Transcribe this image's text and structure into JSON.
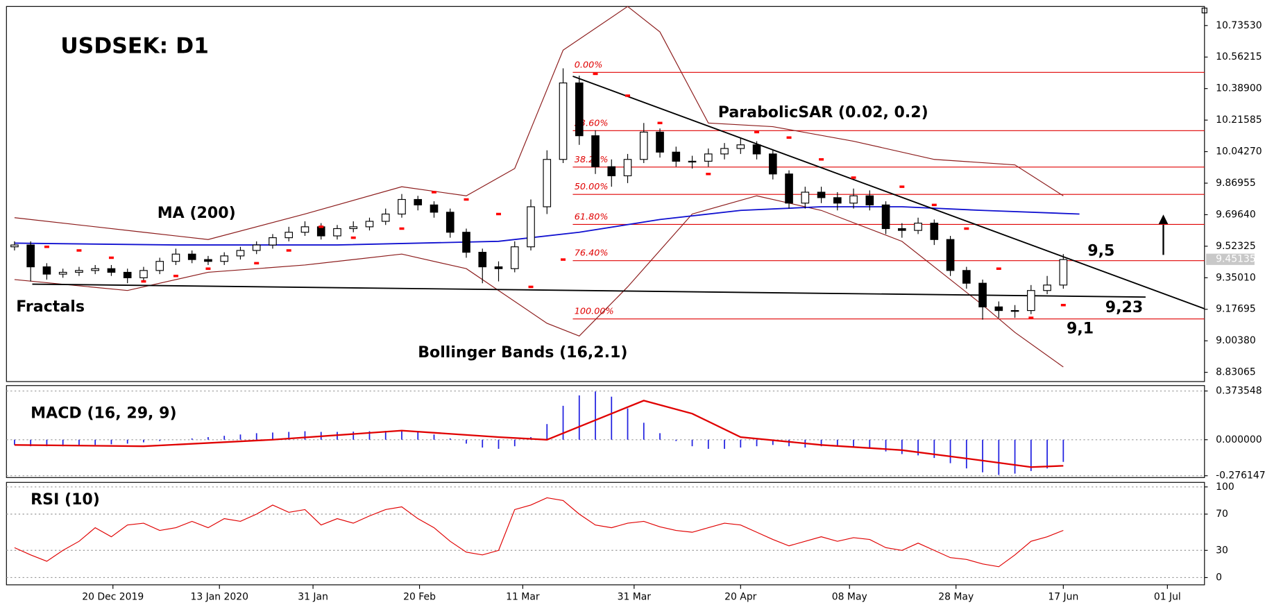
{
  "chart_data": {
    "type": "candlestick",
    "title": "USDSEK: D1",
    "xlim": [
      -0.5,
      73.75
    ],
    "xticks": [
      {
        "value": 6.1,
        "label": "20 Dec 2019"
      },
      {
        "value": 12.7,
        "label": "13 Jan 2020"
      },
      {
        "value": 18.5,
        "label": "31 Jan"
      },
      {
        "value": 25.1,
        "label": "20 Feb"
      },
      {
        "value": 31.5,
        "label": "11 Mar"
      },
      {
        "value": 38.4,
        "label": "31 Mar"
      },
      {
        "value": 45,
        "label": "20 Apr"
      },
      {
        "value": 51.75,
        "label": "08 May"
      },
      {
        "value": 58.35,
        "label": "28 May"
      },
      {
        "value": 65,
        "label": "17 Jun"
      },
      {
        "value": 71.45,
        "label": "01 Jul"
      }
    ],
    "price": {
      "ylim": [
        8.78,
        10.84
      ],
      "yticks": [
        {
          "value": 10.7353,
          "label": "10.73530"
        },
        {
          "value": 10.56215,
          "label": "10.56215"
        },
        {
          "value": 10.389,
          "label": "10.38900"
        },
        {
          "value": 10.21585,
          "label": "10.21585"
        },
        {
          "value": 10.0427,
          "label": "10.04270"
        },
        {
          "value": 9.86955,
          "label": "9.86955"
        },
        {
          "value": 9.6964,
          "label": "9.69640"
        },
        {
          "value": 9.52325,
          "label": "9.52325"
        },
        {
          "value": 9.3501,
          "label": "9.35010"
        },
        {
          "value": 9.17695,
          "label": "9.17695"
        },
        {
          "value": 9.0038,
          "label": "9.00380"
        },
        {
          "value": 8.83065,
          "label": "8.83065"
        }
      ],
      "last_price": {
        "value": 9.45135,
        "label": "9.45135"
      },
      "open": [
        9.52,
        9.53,
        9.41,
        9.37,
        9.38,
        9.39,
        9.4,
        9.38,
        9.35,
        9.39,
        9.44,
        9.48,
        9.45,
        9.44,
        9.47,
        9.5,
        9.53,
        9.57,
        9.6,
        9.63,
        9.58,
        9.62,
        9.63,
        9.66,
        9.7,
        9.78,
        9.75,
        9.71,
        9.6,
        9.49,
        9.41,
        9.4,
        9.52,
        9.74,
        10.0,
        10.42,
        10.13,
        9.96,
        9.91,
        10.0,
        10.15,
        10.04,
        9.99,
        9.99,
        10.03,
        10.06,
        10.08,
        10.03,
        9.92,
        9.76,
        9.82,
        9.79,
        9.76,
        9.8,
        9.75,
        9.62,
        9.61,
        9.65,
        9.56,
        9.39,
        9.32,
        9.19,
        9.17,
        9.17,
        9.28,
        9.31
      ],
      "high": [
        9.55,
        9.55,
        9.43,
        9.4,
        9.41,
        9.42,
        9.42,
        9.4,
        9.41,
        9.46,
        9.51,
        9.5,
        9.47,
        9.49,
        9.52,
        9.55,
        9.59,
        9.63,
        9.66,
        9.65,
        9.64,
        9.66,
        9.68,
        9.73,
        9.81,
        9.8,
        9.77,
        9.73,
        9.62,
        9.51,
        9.44,
        9.55,
        9.78,
        10.05,
        10.5,
        10.46,
        10.16,
        10.0,
        10.03,
        10.2,
        10.17,
        10.07,
        10.02,
        10.06,
        10.09,
        10.12,
        10.1,
        10.05,
        9.94,
        9.85,
        9.85,
        9.82,
        9.84,
        9.83,
        9.77,
        9.65,
        9.68,
        9.67,
        9.58,
        9.41,
        9.34,
        9.22,
        9.2,
        9.31,
        9.36,
        9.48
      ],
      "low": [
        9.5,
        9.33,
        9.34,
        9.35,
        9.36,
        9.37,
        9.36,
        9.32,
        9.33,
        9.37,
        9.42,
        9.43,
        9.42,
        9.42,
        9.45,
        9.48,
        9.51,
        9.55,
        9.58,
        9.56,
        9.56,
        9.6,
        9.61,
        9.64,
        9.68,
        9.72,
        9.68,
        9.57,
        9.46,
        9.32,
        9.33,
        9.38,
        9.5,
        9.7,
        9.98,
        10.08,
        9.92,
        9.85,
        9.87,
        9.98,
        10.01,
        9.96,
        9.95,
        9.96,
        10.0,
        10.03,
        10.0,
        9.89,
        9.73,
        9.73,
        9.76,
        9.72,
        9.73,
        9.72,
        9.59,
        9.57,
        9.59,
        9.53,
        9.36,
        9.29,
        9.12,
        9.13,
        9.13,
        9.15,
        9.26,
        9.29
      ],
      "close": [
        9.53,
        9.41,
        9.37,
        9.38,
        9.39,
        9.4,
        9.38,
        9.35,
        9.39,
        9.44,
        9.48,
        9.45,
        9.44,
        9.47,
        9.5,
        9.53,
        9.57,
        9.6,
        9.63,
        9.58,
        9.62,
        9.63,
        9.66,
        9.7,
        9.78,
        9.75,
        9.71,
        9.6,
        9.49,
        9.41,
        9.4,
        9.52,
        9.74,
        10.0,
        10.42,
        10.13,
        9.96,
        9.91,
        10.0,
        10.15,
        10.04,
        9.99,
        9.99,
        10.03,
        10.06,
        10.08,
        10.03,
        9.92,
        9.76,
        9.82,
        9.79,
        9.76,
        9.8,
        9.75,
        9.62,
        9.61,
        9.65,
        9.56,
        9.39,
        9.32,
        9.19,
        9.17,
        9.17,
        9.28,
        9.31,
        9.45
      ],
      "ma": {
        "name": "MA (200)",
        "color": "#1010d0",
        "x": [
          0,
          10,
          20,
          30,
          35,
          40,
          45,
          50,
          55,
          60,
          66
        ],
        "values": [
          9.54,
          9.53,
          9.53,
          9.55,
          9.6,
          9.67,
          9.72,
          9.74,
          9.74,
          9.72,
          9.7
        ]
      },
      "bollinger": {
        "name": "Bollinger Bands (16,2.1)",
        "color": "#8b1a1a",
        "upper": {
          "x": [
            0,
            8,
            12,
            18,
            24,
            28,
            31,
            34,
            38,
            40,
            43,
            47,
            52,
            57,
            62,
            65
          ],
          "values": [
            9.68,
            9.6,
            9.56,
            9.7,
            9.85,
            9.8,
            9.95,
            10.6,
            10.84,
            10.7,
            10.2,
            10.18,
            10.1,
            10.0,
            9.97,
            9.8
          ]
        },
        "lower": {
          "x": [
            0,
            7,
            12,
            18,
            24,
            28,
            30,
            33,
            35,
            38,
            42,
            46,
            50,
            55,
            60,
            62,
            65
          ],
          "values": [
            9.34,
            9.28,
            9.38,
            9.42,
            9.48,
            9.4,
            9.28,
            9.1,
            9.03,
            9.3,
            9.7,
            9.8,
            9.72,
            9.55,
            9.2,
            9.05,
            8.86
          ]
        }
      },
      "sar": {
        "name": "ParabolicSAR (0.02, 0.2)",
        "color": "#ff0000",
        "x": [
          2,
          4,
          6,
          8,
          10,
          12,
          15,
          17,
          19,
          21,
          24,
          26,
          28,
          30,
          32,
          34,
          36,
          38,
          40,
          43,
          46,
          48,
          50,
          52,
          55,
          57,
          59,
          61,
          63,
          65
        ],
        "values": [
          9.52,
          9.5,
          9.46,
          9.33,
          9.36,
          9.4,
          9.43,
          9.5,
          9.63,
          9.57,
          9.62,
          9.82,
          9.78,
          9.7,
          9.3,
          9.45,
          10.47,
          10.35,
          10.2,
          9.92,
          10.15,
          10.12,
          10.0,
          9.9,
          9.85,
          9.75,
          9.62,
          9.4,
          9.13,
          9.2
        ]
      },
      "fibonacci": {
        "color": "#e00000",
        "start": 34.6,
        "levels": [
          10.478,
          10.158,
          9.958,
          9.808,
          9.643,
          9.444,
          9.124
        ],
        "labels": [
          "0.00%",
          "23.60%",
          "38.20%",
          "50.00%",
          "61.80%",
          "76.40%",
          "100.00%"
        ]
      },
      "trendlines": [
        {
          "x": [
            34.6,
            73.75
          ],
          "values": [
            10.457,
            9.18
          ]
        },
        {
          "x": [
            1.1,
            70.1
          ],
          "values": [
            9.315,
            9.244
          ]
        }
      ],
      "annotations": [
        "Fractals",
        "9,5",
        "9,23",
        "9,1"
      ]
    },
    "macd": {
      "name": "MACD (16, 29, 9)",
      "ylim": [
        -0.29,
        0.415
      ],
      "yticks": [
        {
          "value": 0.373548,
          "label": "0.373548"
        },
        {
          "value": 0,
          "label": "0.000000"
        },
        {
          "value": -0.276147,
          "label": "-0.276147"
        }
      ],
      "histogram": {
        "color": "#2020e0",
        "values": [
          -0.04,
          -0.05,
          -0.05,
          -0.05,
          -0.045,
          -0.04,
          -0.035,
          -0.03,
          -0.02,
          -0.01,
          0.0,
          0.01,
          0.02,
          0.03,
          0.04,
          0.05,
          0.055,
          0.06,
          0.065,
          0.06,
          0.06,
          0.062,
          0.065,
          0.068,
          0.07,
          0.06,
          0.04,
          0.01,
          -0.03,
          -0.06,
          -0.07,
          -0.05,
          0.02,
          0.12,
          0.26,
          0.34,
          0.37,
          0.33,
          0.24,
          0.13,
          0.05,
          -0.01,
          -0.05,
          -0.07,
          -0.07,
          -0.06,
          -0.05,
          -0.04,
          -0.05,
          -0.06,
          -0.05,
          -0.05,
          -0.06,
          -0.07,
          -0.09,
          -0.11,
          -0.12,
          -0.14,
          -0.18,
          -0.22,
          -0.25,
          -0.27,
          -0.26,
          -0.24,
          -0.22,
          -0.17
        ]
      },
      "signal": {
        "color": "#e00000",
        "x": [
          0,
          8,
          16,
          24,
          30,
          33,
          36,
          39,
          42,
          45,
          50,
          55,
          60,
          63,
          65
        ],
        "values": [
          -0.04,
          -0.05,
          0.0,
          0.07,
          0.02,
          0.0,
          0.15,
          0.3,
          0.2,
          0.02,
          -0.04,
          -0.08,
          -0.16,
          -0.21,
          -0.2
        ]
      }
    },
    "rsi": {
      "name": "RSI (10)",
      "ylim": [
        -8,
        105
      ],
      "yticks": [
        100,
        70,
        30,
        0
      ],
      "color": "#e00000",
      "values": [
        33,
        25,
        18,
        30,
        40,
        55,
        45,
        58,
        60,
        52,
        55,
        62,
        55,
        65,
        62,
        70,
        80,
        72,
        75,
        58,
        65,
        60,
        68,
        75,
        78,
        65,
        55,
        40,
        28,
        25,
        30,
        75,
        80,
        88,
        85,
        70,
        58,
        55,
        60,
        62,
        56,
        52,
        50,
        55,
        60,
        58,
        50,
        42,
        35,
        40,
        45,
        40,
        44,
        42,
        33,
        30,
        38,
        30,
        22,
        20,
        15,
        12,
        25,
        40,
        45,
        52
      ]
    }
  }
}
